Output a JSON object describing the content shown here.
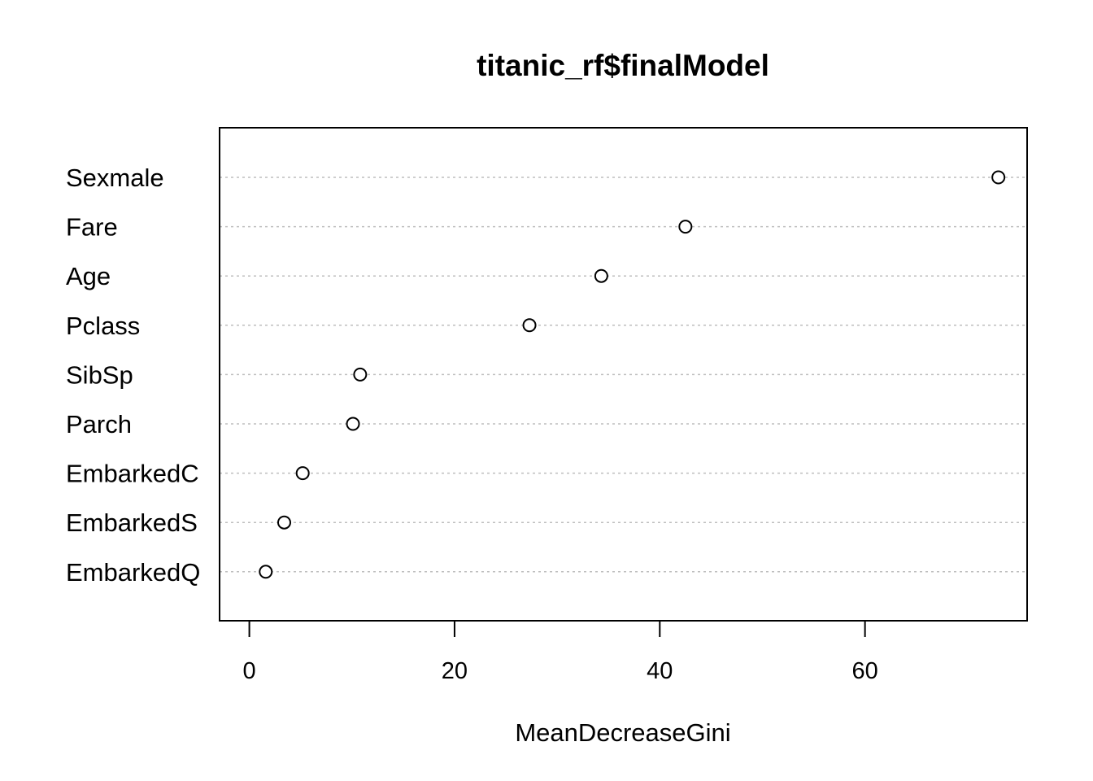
{
  "chart_data": {
    "type": "scatter",
    "subtype": "dotchart",
    "title": "titanic_rf$finalModel",
    "xlabel": "MeanDecreaseGini",
    "ylabel": "",
    "xticks": [
      0,
      20,
      40,
      60
    ],
    "xlim": [
      -2.9,
      75.8
    ],
    "categories": [
      "Sexmale",
      "Fare",
      "Age",
      "Pclass",
      "SibSp",
      "Parch",
      "EmbarkedC",
      "EmbarkedS",
      "EmbarkedQ"
    ],
    "values": [
      73.0,
      42.5,
      34.3,
      27.3,
      10.8,
      10.1,
      5.2,
      3.4,
      1.6
    ],
    "grid": "dotted horizontal lines",
    "legend": "none",
    "colors": {
      "points": "#000000",
      "grid": "#bebebe",
      "frame": "#000000"
    }
  }
}
